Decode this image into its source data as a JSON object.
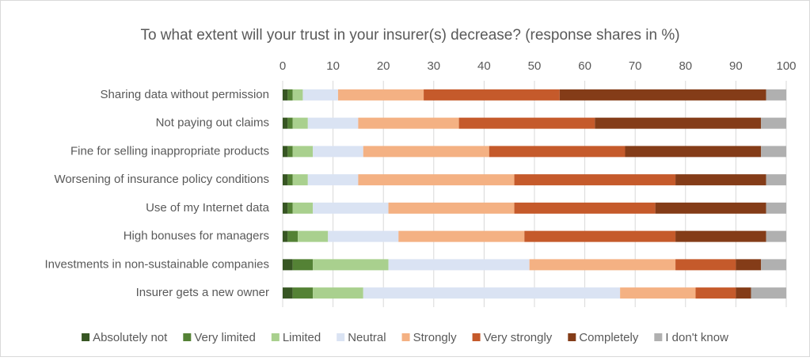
{
  "chart_data": {
    "type": "stacked-bar-horizontal",
    "title": "To what extent will your trust in your insurer(s) decrease? (response shares in %)",
    "categories": [
      "Sharing data without permission",
      "Not paying out claims",
      "Fine for selling inappropriate products",
      "Worsening of insurance policy conditions",
      "Use of my Internet data",
      "High bonuses for managers",
      "Investments in non-sustainable companies",
      "Insurer gets a new owner"
    ],
    "series": [
      {
        "name": "Absolutely not",
        "color": "#375623",
        "values": [
          1,
          1,
          1,
          1,
          1,
          1,
          2,
          2
        ]
      },
      {
        "name": "Very limited",
        "color": "#548235",
        "values": [
          1,
          1,
          1,
          1,
          1,
          2,
          4,
          4
        ]
      },
      {
        "name": "Limited",
        "color": "#a9d08e",
        "values": [
          2,
          3,
          4,
          3,
          4,
          6,
          15,
          10
        ]
      },
      {
        "name": "Neutral",
        "color": "#dae3f3",
        "values": [
          7,
          10,
          10,
          10,
          15,
          14,
          28,
          51
        ]
      },
      {
        "name": "Strongly",
        "color": "#f4b183",
        "values": [
          17,
          20,
          25,
          31,
          25,
          25,
          29,
          15
        ]
      },
      {
        "name": "Very strongly",
        "color": "#c55a2b",
        "values": [
          27,
          27,
          27,
          32,
          28,
          30,
          12,
          8
        ]
      },
      {
        "name": "Completely",
        "color": "#843c18",
        "values": [
          41,
          33,
          27,
          18,
          22,
          18,
          5,
          3
        ]
      },
      {
        "name": "I don't know",
        "color": "#b0b0b0",
        "values": [
          4,
          5,
          5,
          4,
          4,
          4,
          5,
          7
        ]
      }
    ],
    "xlim": [
      0,
      100
    ],
    "xticks": [
      0,
      10,
      20,
      30,
      40,
      50,
      60,
      70,
      80,
      90,
      100
    ],
    "grid": true,
    "legend": "bottom"
  }
}
